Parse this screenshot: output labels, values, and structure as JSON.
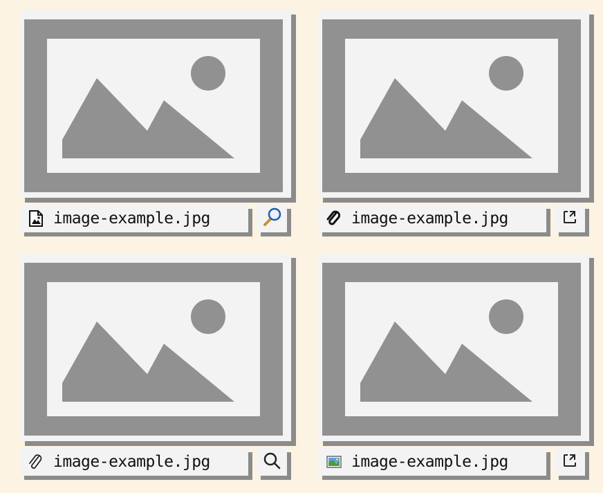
{
  "colors": {
    "page_background": "#fdf3e2",
    "panel": "#f3f3f3",
    "placeholder_gray": "#919191",
    "shadow": "#8b8b8b"
  },
  "cards": [
    {
      "file_icon": "image-file-icon",
      "file_name": "image-example.jpg",
      "action_icon": "magnifier-icon"
    },
    {
      "file_icon": "paperclip-bold-icon",
      "file_name": "image-example.jpg",
      "action_icon": "expand-icon"
    },
    {
      "file_icon": "paperclip-icon",
      "file_name": "image-example.jpg",
      "action_icon": "search-icon"
    },
    {
      "file_icon": "picture-icon",
      "file_name": "image-example.jpg",
      "action_icon": "expand-icon"
    }
  ]
}
